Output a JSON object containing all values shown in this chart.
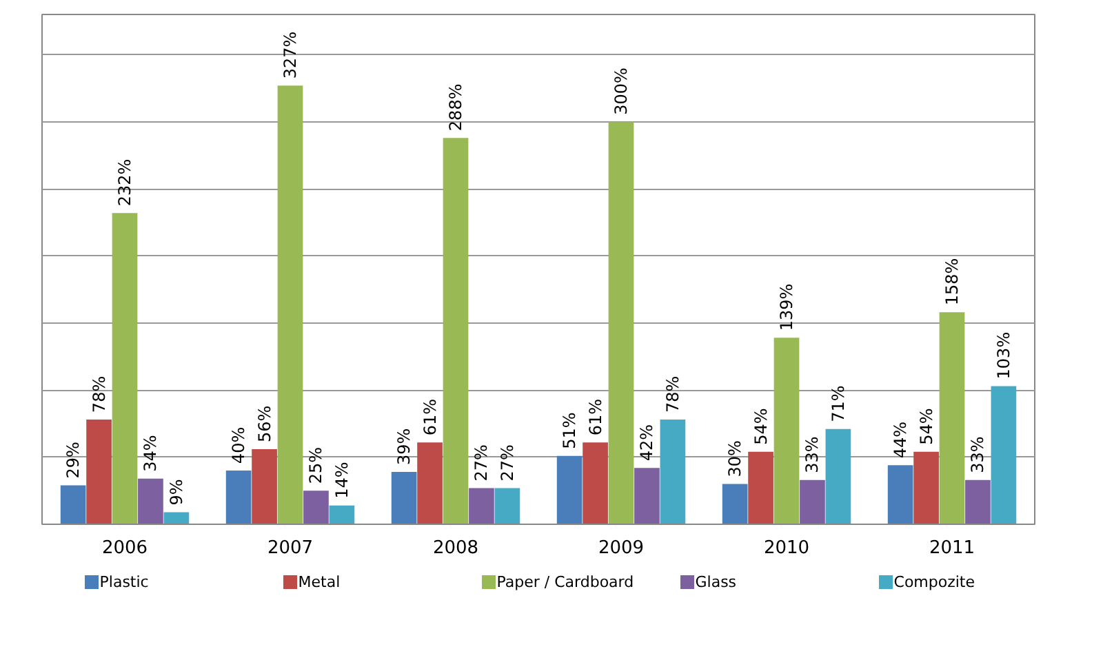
{
  "chart_data": {
    "type": "bar",
    "categories": [
      "2006",
      "2007",
      "2008",
      "2009",
      "2010",
      "2011"
    ],
    "series": [
      {
        "name": "Plastic",
        "color": "#4a7ebb",
        "values": [
          29,
          40,
          39,
          51,
          30,
          44
        ],
        "value_labels": [
          "29%",
          "40%",
          "39%",
          "51%",
          "30%",
          "44%"
        ]
      },
      {
        "name": "Metal",
        "color": "#be4b48",
        "values": [
          78,
          56,
          61,
          61,
          54,
          54
        ],
        "value_labels": [
          "78%",
          "56%",
          "61%",
          "61%",
          "54%",
          "54%"
        ]
      },
      {
        "name": "Paper / Cardboard",
        "color": "#98b954",
        "values": [
          232,
          327,
          288,
          300,
          139,
          158
        ],
        "value_labels": [
          "232%",
          "327%",
          "288%",
          "300%",
          "139%",
          "158%"
        ]
      },
      {
        "name": "Glass",
        "color": "#7d60a0",
        "values": [
          34,
          25,
          27,
          42,
          33,
          33
        ],
        "value_labels": [
          "34%",
          "25%",
          "27%",
          "42%",
          "33%",
          "33%"
        ]
      },
      {
        "name": "Compozite",
        "color": "#46aac5",
        "values": [
          9,
          14,
          27,
          78,
          71,
          103
        ],
        "value_labels": [
          "9%",
          "14%",
          "27%",
          "78%",
          "71%",
          "103%"
        ]
      }
    ],
    "ylim": [
      0,
      380
    ],
    "yticks": [
      {
        "value": 0,
        "label": null
      },
      {
        "value": 50,
        "label": null
      },
      {
        "value": 100,
        "label": null
      },
      {
        "value": 150,
        "label": null
      },
      {
        "value": 200,
        "label": null
      },
      {
        "value": 250,
        "label": null
      },
      {
        "value": 300,
        "label": null
      },
      {
        "value": 350,
        "label": null
      }
    ],
    "tick_labels": "x",
    "grid": "y",
    "legend": "bottom"
  }
}
